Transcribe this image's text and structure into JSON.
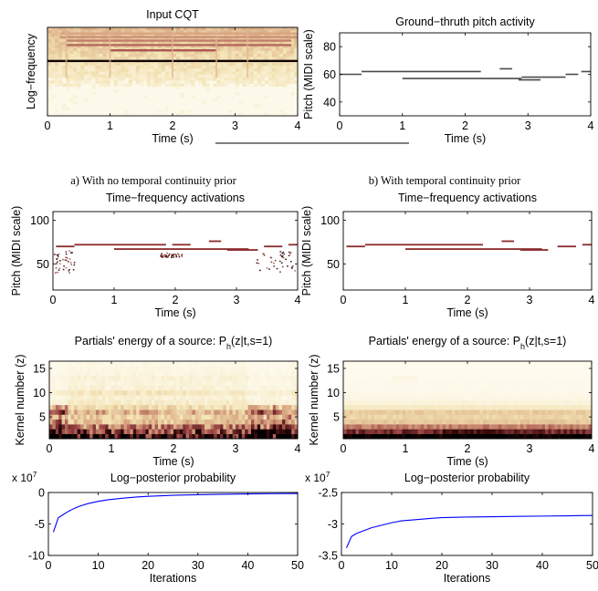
{
  "figure": {
    "caption_a": "a) With no temporal continuity prior",
    "caption_b": "b) With temporal continuity prior"
  },
  "chart_data": [
    {
      "id": "input_cqt",
      "type": "heatmap",
      "title": "Input CQT",
      "xlabel": "Time (s)",
      "ylabel": "Log−frequency",
      "xlim": [
        0,
        4
      ],
      "xticks": [
        "0",
        "1",
        "2",
        "3",
        "4"
      ],
      "yticks": [],
      "colormap": [
        "#fdf8e6",
        "#f1dfae",
        "#d9a481",
        "#9c3c3c",
        "#3a0a0a"
      ],
      "note_bands": [
        {
          "y": 0.62,
          "t0": 0.0,
          "t1": 4.0,
          "intensity": 1.0
        },
        {
          "y": 0.74,
          "t0": 1.0,
          "t1": 2.7,
          "intensity": 0.55
        },
        {
          "y": 0.8,
          "t0": 0.3,
          "t1": 3.9,
          "intensity": 0.5
        },
        {
          "y": 0.85,
          "t0": 0.3,
          "t1": 3.9,
          "intensity": 0.45
        },
        {
          "y": 0.89,
          "t0": 0.2,
          "t1": 4.0,
          "intensity": 0.4
        },
        {
          "y": 0.93,
          "t0": 0.2,
          "t1": 4.0,
          "intensity": 0.35
        }
      ]
    },
    {
      "id": "ground_truth",
      "type": "line",
      "title": "Ground−thruth pitch activity",
      "xlabel": "Time (s)",
      "ylabel": "Pitch (MIDI scale)",
      "xlim": [
        0,
        4
      ],
      "ylim": [
        30,
        90
      ],
      "xticks": [
        "0",
        "1",
        "2",
        "3",
        "4"
      ],
      "yticks": [
        "40",
        "60",
        "80"
      ],
      "segments": [
        {
          "t0": 0.0,
          "t1": 0.35,
          "pitch": 60
        },
        {
          "t0": 0.35,
          "t1": 2.25,
          "pitch": 62
        },
        {
          "t0": 1.0,
          "t1": 2.9,
          "pitch": 57
        },
        {
          "t0": 2.55,
          "t1": 2.75,
          "pitch": 64
        },
        {
          "t0": 2.85,
          "t1": 3.2,
          "pitch": 56
        },
        {
          "t0": 2.9,
          "t1": 3.6,
          "pitch": 58
        },
        {
          "t0": 3.6,
          "t1": 3.8,
          "pitch": 60
        },
        {
          "t0": 3.85,
          "t1": 4.0,
          "pitch": 62
        }
      ]
    },
    {
      "id": "tf_activations_a",
      "type": "heatmap",
      "title": "Time−frequency activations",
      "xlabel": "Time (s)",
      "ylabel": "Pitch (MIDI scale)",
      "xlim": [
        0,
        4
      ],
      "ylim": [
        20,
        110
      ],
      "xticks": [
        "0",
        "1",
        "2",
        "3",
        "4"
      ],
      "yticks": [
        "50",
        "100"
      ],
      "segments": [
        {
          "t0": 0.05,
          "t1": 0.35,
          "pitch": 70
        },
        {
          "t0": 0.35,
          "t1": 1.85,
          "pitch": 72
        },
        {
          "t0": 1.0,
          "t1": 3.2,
          "pitch": 67
        },
        {
          "t0": 1.95,
          "t1": 2.25,
          "pitch": 72
        },
        {
          "t0": 2.55,
          "t1": 2.75,
          "pitch": 76
        },
        {
          "t0": 2.85,
          "t1": 3.35,
          "pitch": 66
        },
        {
          "t0": 3.45,
          "t1": 3.75,
          "pitch": 70
        },
        {
          "t0": 3.85,
          "t1": 4.0,
          "pitch": 72
        }
      ],
      "noise": [
        {
          "t0": 0.0,
          "t1": 0.35,
          "p0": 40,
          "p1": 66
        },
        {
          "t0": 1.75,
          "t1": 2.1,
          "p0": 58,
          "p1": 63
        },
        {
          "t0": 3.3,
          "t1": 3.95,
          "p0": 40,
          "p1": 66
        }
      ]
    },
    {
      "id": "tf_activations_b",
      "type": "heatmap",
      "title": "Time−frequency activations",
      "xlabel": "Time (s)",
      "ylabel": "Pitch (MIDI scale)",
      "xlim": [
        0,
        4
      ],
      "ylim": [
        20,
        110
      ],
      "xticks": [
        "0",
        "1",
        "2",
        "3",
        "4"
      ],
      "yticks": [
        "50",
        "100"
      ],
      "segments": [
        {
          "t0": 0.05,
          "t1": 0.35,
          "pitch": 70
        },
        {
          "t0": 0.35,
          "t1": 2.25,
          "pitch": 72
        },
        {
          "t0": 1.0,
          "t1": 3.2,
          "pitch": 67
        },
        {
          "t0": 2.55,
          "t1": 2.75,
          "pitch": 76
        },
        {
          "t0": 2.85,
          "t1": 3.3,
          "pitch": 66
        },
        {
          "t0": 3.45,
          "t1": 3.75,
          "pitch": 70
        },
        {
          "t0": 3.85,
          "t1": 4.0,
          "pitch": 72
        }
      ],
      "noise": []
    },
    {
      "id": "partials_a",
      "type": "heatmap",
      "title": "Partials' energy of a source: P",
      "title_sub": "h",
      "title_tail": "(z|t,s=1)",
      "xlabel": "Time (s)",
      "ylabel": "Kernel number (z)",
      "xlim": [
        0,
        4
      ],
      "ylim": [
        0.5,
        16.5
      ],
      "xticks": [
        "0",
        "1",
        "2",
        "3",
        "4"
      ],
      "yticks": [
        "5",
        "10",
        "15"
      ],
      "rows": [
        {
          "z": 1,
          "intensity": 0.95
        },
        {
          "z": 2,
          "intensity": 0.75
        },
        {
          "z": 3,
          "intensity": 0.55
        },
        {
          "z": 4,
          "intensity": 0.35
        },
        {
          "z": 5,
          "intensity": 0.3
        },
        {
          "z": 6,
          "intensity": 0.4
        },
        {
          "z": 7,
          "intensity": 0.25
        },
        {
          "z": 8,
          "intensity": 0.15
        },
        {
          "z": 9,
          "intensity": 0.12
        },
        {
          "z": 10,
          "intensity": 0.18
        },
        {
          "z": 11,
          "intensity": 0.1
        },
        {
          "z": 12,
          "intensity": 0.08
        },
        {
          "z": 13,
          "intensity": 0.1
        },
        {
          "z": 14,
          "intensity": 0.07
        },
        {
          "z": 15,
          "intensity": 0.06
        },
        {
          "z": 16,
          "intensity": 0.05
        }
      ],
      "variable": true
    },
    {
      "id": "partials_b",
      "type": "heatmap",
      "title": "Partials' energy of a source: P",
      "title_sub": "h",
      "title_tail": "(z|t,s=1)",
      "xlabel": "Time (s)",
      "ylabel": "Kernel number (z)",
      "xlim": [
        0,
        4
      ],
      "ylim": [
        0.5,
        16.5
      ],
      "xticks": [
        "0",
        "1",
        "2",
        "3",
        "4"
      ],
      "yticks": [
        "5",
        "10",
        "15"
      ],
      "rows": [
        {
          "z": 1,
          "intensity": 1.0
        },
        {
          "z": 2,
          "intensity": 0.7
        },
        {
          "z": 3,
          "intensity": 0.5
        },
        {
          "z": 4,
          "intensity": 0.3
        },
        {
          "z": 5,
          "intensity": 0.25
        },
        {
          "z": 6,
          "intensity": 0.28
        },
        {
          "z": 7,
          "intensity": 0.15
        },
        {
          "z": 8,
          "intensity": 0.08
        },
        {
          "z": 9,
          "intensity": 0.05
        },
        {
          "z": 10,
          "intensity": 0.04
        },
        {
          "z": 11,
          "intensity": 0.03
        },
        {
          "z": 12,
          "intensity": 0.03
        },
        {
          "z": 13,
          "intensity": 0.06
        },
        {
          "z": 14,
          "intensity": 0.02
        },
        {
          "z": 15,
          "intensity": 0.02
        },
        {
          "z": 16,
          "intensity": 0.02
        }
      ],
      "variable": false
    },
    {
      "id": "log_posterior_a",
      "type": "line",
      "title": "Log−posterior probability",
      "xlabel": "Iterations",
      "ylabel": "",
      "exponent_base": "x 10",
      "exponent": "7",
      "xlim": [
        0,
        50
      ],
      "ylim": [
        -10,
        0
      ],
      "xticks": [
        "0",
        "10",
        "20",
        "30",
        "40",
        "50"
      ],
      "yticks": [
        "0",
        "-5",
        "-10"
      ],
      "color": "#0000ff",
      "x": [
        1,
        2,
        3,
        4,
        5,
        6,
        8,
        10,
        12,
        15,
        18,
        20,
        25,
        30,
        35,
        40,
        45,
        50
      ],
      "y": [
        -6.3,
        -4.0,
        -3.5,
        -3.0,
        -2.6,
        -2.25,
        -1.75,
        -1.4,
        -1.15,
        -0.9,
        -0.7,
        -0.6,
        -0.45,
        -0.35,
        -0.28,
        -0.22,
        -0.18,
        -0.15
      ]
    },
    {
      "id": "log_posterior_b",
      "type": "line",
      "title": "Log−posterior probability",
      "xlabel": "Iterations",
      "ylabel": "",
      "exponent_base": "x 10",
      "exponent": "7",
      "xlim": [
        0,
        50
      ],
      "ylim": [
        -3.5,
        -2.5
      ],
      "xticks": [
        "0",
        "10",
        "20",
        "30",
        "40",
        "50"
      ],
      "yticks": [
        "-2.5",
        "-3",
        "-3.5"
      ],
      "color": "#0000ff",
      "x": [
        1,
        2,
        3,
        4,
        5,
        6,
        8,
        10,
        12,
        15,
        18,
        20,
        25,
        30,
        35,
        40,
        45,
        50
      ],
      "y": [
        -3.38,
        -3.2,
        -3.15,
        -3.12,
        -3.09,
        -3.06,
        -3.02,
        -2.98,
        -2.95,
        -2.93,
        -2.91,
        -2.9,
        -2.89,
        -2.885,
        -2.88,
        -2.875,
        -2.87,
        -2.865
      ]
    }
  ]
}
